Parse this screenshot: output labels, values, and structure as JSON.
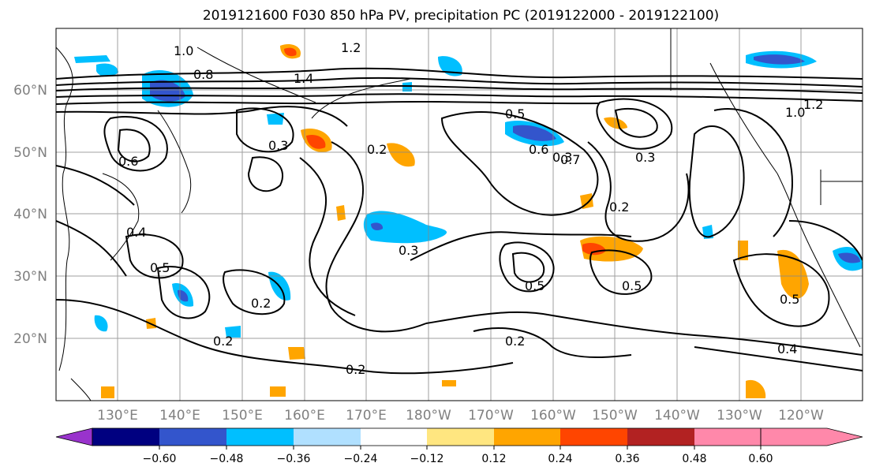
{
  "title": "2019121600 F030 850 hPa PV, precipitation PC (2019122000 - 2019122100)",
  "lat_labels": [
    "60°N",
    "50°N",
    "40°N",
    "30°N",
    "20°N"
  ],
  "lon_labels": [
    "130°E",
    "140°E",
    "150°E",
    "160°E",
    "170°E",
    "180°W",
    "170°W",
    "160°W",
    "150°W",
    "140°W",
    "130°W",
    "120°W"
  ],
  "contour_labels": [
    "1.0",
    "1.2",
    "0.8",
    "0.6",
    "0.4",
    "1.4",
    "0.5",
    "0.3",
    "0.2",
    "0.5",
    "0.3",
    "0.2",
    "0.3",
    "0.5",
    "0.5",
    "0.2",
    "0.2",
    "0.2",
    "0.2",
    "0.4",
    "0.3",
    "1.2",
    "1.0",
    "0.7",
    "0.6",
    "0.5"
  ],
  "colorbar": {
    "ticks": [
      "−0.60",
      "−0.48",
      "−0.36",
      "−0.24",
      "−0.12",
      "0.12",
      "0.24",
      "0.36",
      "0.48",
      "0.60"
    ],
    "colors": [
      "#9933cc",
      "#000080",
      "#3355cc",
      "#00bfff",
      "#b0e0ff",
      "#ffffff",
      "#ffe680",
      "#ffa500",
      "#ff4500",
      "#b22222",
      "#ff88aa"
    ]
  }
}
